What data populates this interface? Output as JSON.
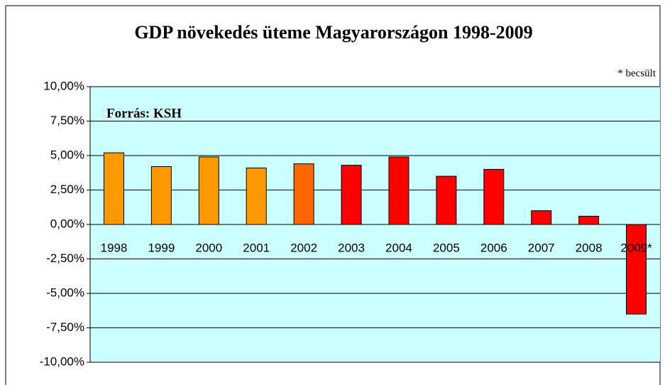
{
  "chart_data": {
    "type": "bar",
    "title": "GDP növekedés üteme Magyarországon 1998-2009",
    "note": "* becsült",
    "source": "Forrás: KSH",
    "categories": [
      "1998",
      "1999",
      "2000",
      "2001",
      "2002",
      "2003",
      "2004",
      "2005",
      "2006",
      "2007",
      "2008",
      "2009*"
    ],
    "values": [
      5.2,
      4.2,
      4.9,
      4.1,
      4.4,
      4.3,
      4.9,
      3.5,
      4.0,
      1.0,
      0.6,
      -6.5
    ],
    "colors": [
      "#ff9900",
      "#ff9900",
      "#ff9900",
      "#ff9900",
      "#ff6600",
      "#ff0000",
      "#ff0000",
      "#ff0000",
      "#ff0000",
      "#ff0000",
      "#ff0000",
      "#ff0000"
    ],
    "ylim": [
      -10,
      10
    ],
    "yticks": [
      {
        "value": -10,
        "label": "-10,00%"
      },
      {
        "value": -7.5,
        "label": "-7,50%"
      },
      {
        "value": -5,
        "label": "-5,00%"
      },
      {
        "value": -2.5,
        "label": "-2,50%"
      },
      {
        "value": 0,
        "label": "0,00%"
      },
      {
        "value": 2.5,
        "label": "2,50%"
      },
      {
        "value": 5,
        "label": "5,00%"
      },
      {
        "value": 7.5,
        "label": "7,50%"
      },
      {
        "value": 10,
        "label": "10,00%"
      }
    ],
    "grid": true,
    "plot_background": "#ccffff"
  }
}
